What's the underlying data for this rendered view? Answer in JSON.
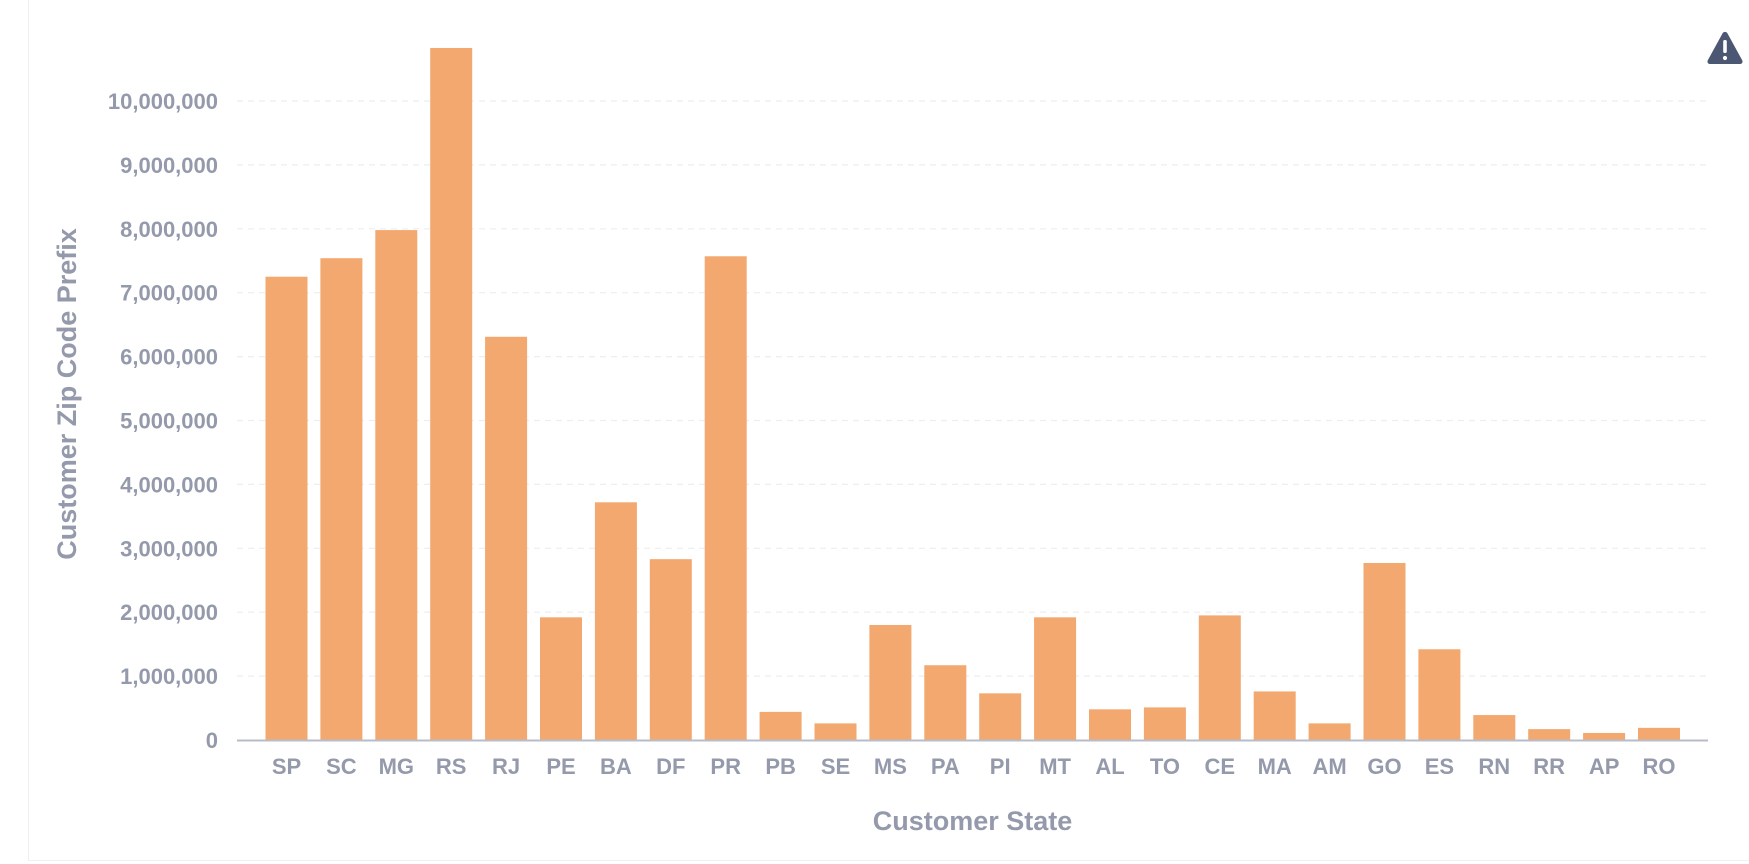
{
  "warning_icon": "warning-triangle-icon",
  "colors": {
    "bar": "#f2a86f",
    "axis_text": "#949aab",
    "grid": "#eceef2",
    "axis_line": "#b8bcc7",
    "warning": "#4c5773"
  },
  "chart_data": {
    "type": "bar",
    "xlabel": "Customer State",
    "ylabel": "Customer Zip Code Prefix",
    "ylim": [
      0,
      10800000
    ],
    "yticks": [
      0,
      1000000,
      2000000,
      3000000,
      4000000,
      5000000,
      6000000,
      7000000,
      8000000,
      9000000,
      10000000
    ],
    "ytick_labels": [
      "0",
      "1,000,000",
      "2,000,000",
      "3,000,000",
      "4,000,000",
      "5,000,000",
      "6,000,000",
      "7,000,000",
      "8,000,000",
      "9,000,000",
      "10,000,000"
    ],
    "grid": true,
    "categories": [
      "SP",
      "SC",
      "MG",
      "RS",
      "RJ",
      "PE",
      "BA",
      "DF",
      "PR",
      "PB",
      "SE",
      "MS",
      "PA",
      "PI",
      "MT",
      "AL",
      "TO",
      "CE",
      "MA",
      "AM",
      "GO",
      "ES",
      "RN",
      "RR",
      "AP",
      "RO"
    ],
    "values": [
      7250000,
      7540000,
      7980000,
      10830000,
      6310000,
      1920000,
      3720000,
      2830000,
      7570000,
      440000,
      260000,
      1800000,
      1170000,
      730000,
      1920000,
      480000,
      510000,
      1950000,
      760000,
      260000,
      2770000,
      1420000,
      390000,
      170000,
      110000,
      190000
    ]
  }
}
